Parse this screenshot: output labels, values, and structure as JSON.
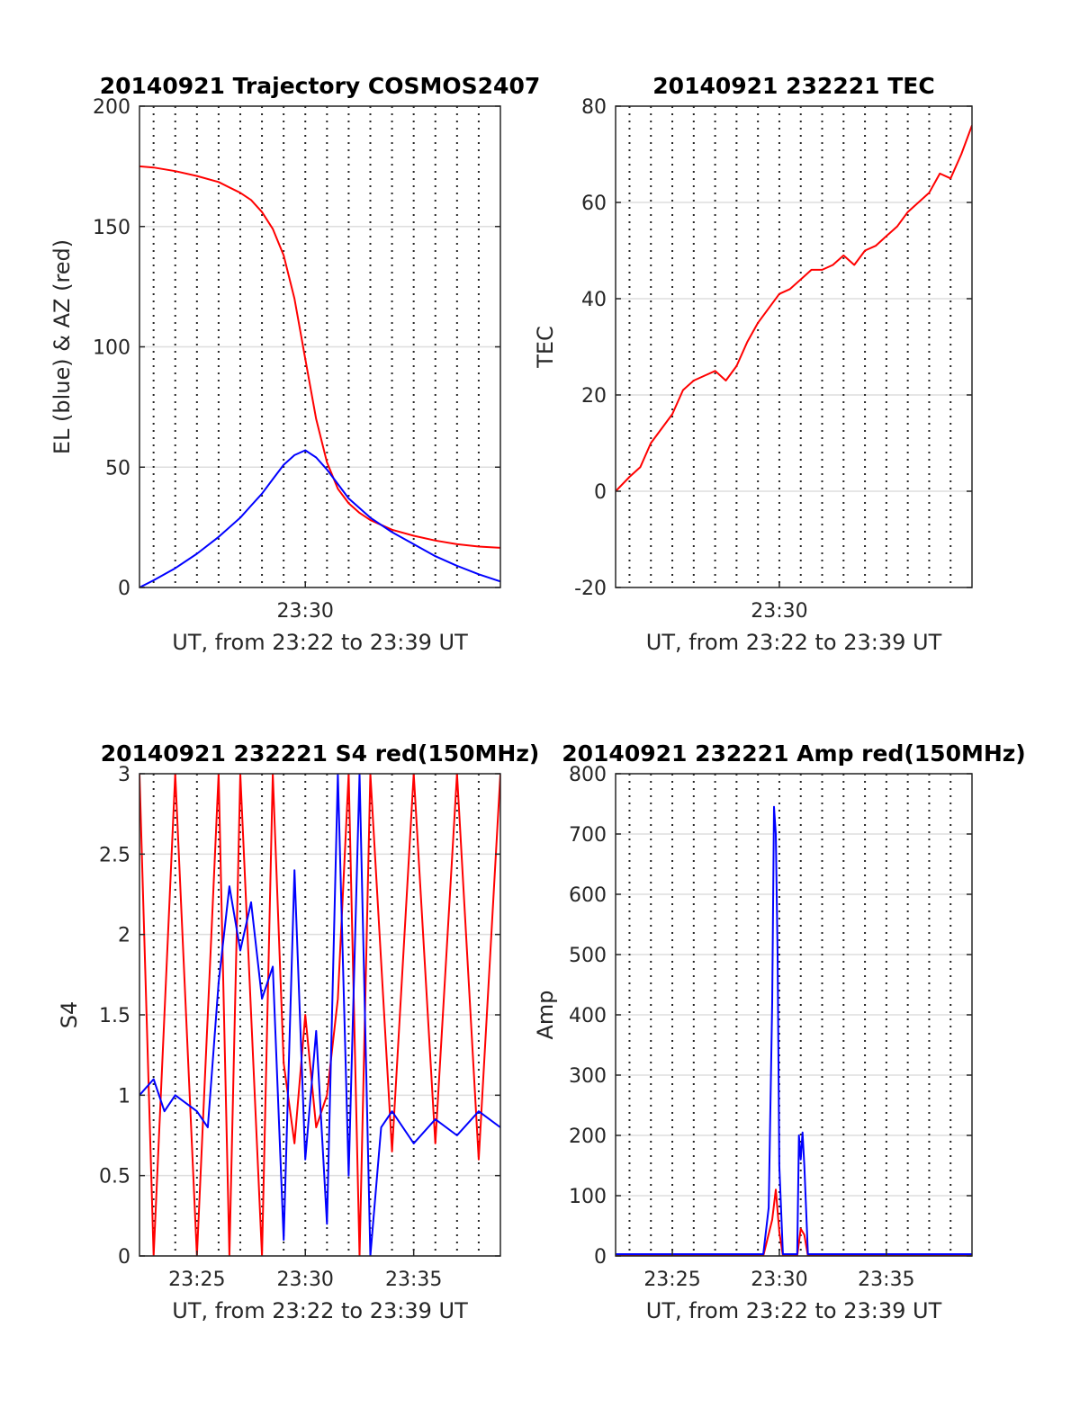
{
  "chart_data": [
    {
      "type": "line",
      "title": "20140921 Trajectory COSMOS2407",
      "xlabel": "UT, from 23:22 to 23:39 UT",
      "ylabel": "EL (blue) & AZ (red)",
      "xlim": [
        "23:22:21",
        "23:39:00"
      ],
      "ylim": [
        0,
        200
      ],
      "yticks": [
        0,
        50,
        100,
        150,
        200
      ],
      "ytick_labels": [
        "0",
        "50",
        "100",
        "150",
        "200"
      ],
      "xtick_labels": [
        "23:30"
      ],
      "grid": true,
      "series": [
        {
          "color": "#ff0000",
          "x": [
            "23:22:21",
            "23:23:00",
            "23:24:00",
            "23:25:00",
            "23:26:00",
            "23:27:00",
            "23:27:30",
            "23:28:00",
            "23:28:30",
            "23:29:00",
            "23:29:30",
            "23:30:00",
            "23:30:30",
            "23:31:00",
            "23:31:30",
            "23:32:00",
            "23:32:30",
            "23:33:00",
            "23:34:00",
            "23:35:00",
            "23:36:00",
            "23:37:00",
            "23:38:00",
            "23:39:00"
          ],
          "values": [
            175,
            174.5,
            173,
            171,
            168.5,
            164,
            161,
            156,
            149,
            138,
            120,
            95,
            70,
            52,
            41,
            35,
            31,
            28,
            24,
            21.5,
            19.5,
            18,
            17,
            16.5
          ]
        },
        {
          "color": "#0000ff",
          "x": [
            "23:22:21",
            "23:23:00",
            "23:24:00",
            "23:25:00",
            "23:26:00",
            "23:27:00",
            "23:27:30",
            "23:28:00",
            "23:28:30",
            "23:29:00",
            "23:29:30",
            "23:30:00",
            "23:30:30",
            "23:31:00",
            "23:31:30",
            "23:32:00",
            "23:32:30",
            "23:33:00",
            "23:34:00",
            "23:35:00",
            "23:36:00",
            "23:37:00",
            "23:38:00",
            "23:39:00"
          ],
          "values": [
            0,
            3,
            8,
            14,
            21,
            29,
            34,
            39,
            45,
            51,
            55,
            57,
            54,
            49,
            43,
            37,
            33,
            29,
            23,
            18,
            13,
            9,
            5.5,
            2.5
          ]
        }
      ]
    },
    {
      "type": "line",
      "title": "20140921 232221 TEC",
      "xlabel": "UT, from 23:22 to 23:39 UT",
      "ylabel": "TEC",
      "xlim": [
        "23:22:21",
        "23:39:00"
      ],
      "ylim": [
        -20,
        80
      ],
      "yticks": [
        -20,
        0,
        20,
        40,
        60,
        80
      ],
      "ytick_labels": [
        "-20",
        "0",
        "20",
        "40",
        "60",
        "80"
      ],
      "xtick_labels": [
        "23:30"
      ],
      "grid": true,
      "series": [
        {
          "color": "#ff0000",
          "x": [
            "23:22:21",
            "23:23:00",
            "23:23:30",
            "23:24:00",
            "23:25:00",
            "23:25:30",
            "23:26:00",
            "23:26:30",
            "23:27:00",
            "23:27:30",
            "23:28:00",
            "23:28:30",
            "23:29:00",
            "23:29:30",
            "23:30:00",
            "23:30:30",
            "23:31:00",
            "23:31:30",
            "23:32:00",
            "23:32:30",
            "23:33:00",
            "23:33:30",
            "23:34:00",
            "23:34:30",
            "23:35:00",
            "23:35:30",
            "23:36:00",
            "23:36:30",
            "23:37:00",
            "23:37:30",
            "23:38:00",
            "23:38:30",
            "23:39:00"
          ],
          "values": [
            0,
            3,
            5,
            10,
            16,
            21,
            23,
            24,
            25,
            23,
            26,
            31,
            35,
            38,
            41,
            42,
            44,
            46,
            46,
            47,
            49,
            47,
            50,
            51,
            53,
            55,
            58,
            60,
            62,
            66,
            65,
            70,
            76
          ]
        }
      ]
    },
    {
      "type": "line",
      "title": "20140921 232221 S4 red(150MHz)",
      "xlabel": "UT, from 23:22 to 23:39 UT",
      "ylabel": "S4",
      "xlim": [
        "23:22:21",
        "23:39:00"
      ],
      "ylim": [
        0,
        3
      ],
      "yticks": [
        0,
        0.5,
        1,
        1.5,
        2,
        2.5,
        3
      ],
      "ytick_labels": [
        "0",
        "0.5",
        "1",
        "1.5",
        "2",
        "2.5",
        "3"
      ],
      "xtick_labels": [
        "23:25",
        "23:30",
        "23:35"
      ],
      "grid": true,
      "series": [
        {
          "color": "#ff0000",
          "x": [
            "23:22:21",
            "23:23:00",
            "23:24:00",
            "23:25:00",
            "23:26:00",
            "23:26:30",
            "23:27:00",
            "23:28:00",
            "23:28:30",
            "23:29:00",
            "23:29:30",
            "23:30:00",
            "23:30:30",
            "23:31:00",
            "23:31:30",
            "23:32:00",
            "23:32:30",
            "23:33:00",
            "23:34:00",
            "23:35:00",
            "23:36:00",
            "23:37:00",
            "23:38:00",
            "23:39:00"
          ],
          "values": [
            3,
            0,
            3,
            0,
            3,
            0,
            3,
            0,
            3,
            1.2,
            0.7,
            1.5,
            0.8,
            1.0,
            1.6,
            3,
            0,
            3,
            0.65,
            3,
            0.7,
            3,
            0.6,
            3
          ]
        },
        {
          "color": "#0000ff",
          "x": [
            "23:22:21",
            "23:23:00",
            "23:23:30",
            "23:24:00",
            "23:25:00",
            "23:25:30",
            "23:26:00",
            "23:26:30",
            "23:27:00",
            "23:27:30",
            "23:28:00",
            "23:28:30",
            "23:29:00",
            "23:29:30",
            "23:30:00",
            "23:30:30",
            "23:31:00",
            "23:31:30",
            "23:32:00",
            "23:32:30",
            "23:33:00",
            "23:33:30",
            "23:34:00",
            "23:35:00",
            "23:36:00",
            "23:37:00",
            "23:38:00",
            "23:39:00"
          ],
          "values": [
            1.0,
            1.1,
            0.9,
            1.0,
            0.9,
            0.8,
            1.7,
            2.3,
            1.9,
            2.2,
            1.6,
            1.8,
            0.1,
            2.4,
            0.6,
            1.4,
            0.2,
            3.0,
            0.5,
            3.0,
            0.0,
            0.8,
            0.9,
            0.7,
            0.85,
            0.75,
            0.9,
            0.8
          ]
        }
      ]
    },
    {
      "type": "line",
      "title": "20140921 232221 Amp red(150MHz)",
      "xlabel": "UT, from 23:22 to 23:39 UT",
      "ylabel": "Amp",
      "xlim": [
        "23:22:21",
        "23:39:00"
      ],
      "ylim": [
        0,
        800
      ],
      "yticks": [
        0,
        100,
        200,
        300,
        400,
        500,
        600,
        700,
        800
      ],
      "ytick_labels": [
        "0",
        "100",
        "200",
        "300",
        "400",
        "500",
        "600",
        "700",
        "800"
      ],
      "xtick_labels": [
        "23:25",
        "23:30",
        "23:35"
      ],
      "grid": true,
      "series": [
        {
          "color": "#ff0000",
          "x": [
            "23:22:21",
            "23:29:15",
            "23:29:40",
            "23:29:50",
            "23:30:00",
            "23:30:10",
            "23:30:50",
            "23:31:00",
            "23:31:10",
            "23:31:20",
            "23:39:00"
          ],
          "values": [
            0,
            0,
            60,
            110,
            40,
            0,
            0,
            45,
            35,
            0,
            0
          ]
        },
        {
          "color": "#0000ff",
          "x": [
            "23:22:21",
            "23:29:15",
            "23:29:30",
            "23:29:40",
            "23:29:45",
            "23:29:50",
            "23:29:55",
            "23:30:00",
            "23:30:10",
            "23:30:50",
            "23:30:55",
            "23:31:00",
            "23:31:05",
            "23:31:10",
            "23:31:20",
            "23:39:00"
          ],
          "values": [
            3,
            3,
            80,
            420,
            745,
            700,
            500,
            150,
            3,
            3,
            200,
            160,
            205,
            150,
            3,
            3
          ]
        }
      ]
    }
  ]
}
